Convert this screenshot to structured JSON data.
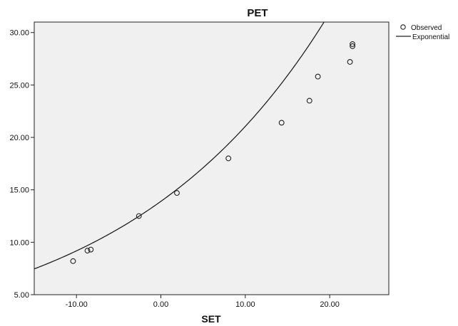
{
  "chart_data": {
    "type": "scatter",
    "title": "PET",
    "xlabel": "SET",
    "ylabel": "",
    "xlim": [
      -15,
      27
    ],
    "ylim": [
      5,
      31
    ],
    "x_ticks": [
      -10,
      0,
      10,
      20
    ],
    "x_tick_labels": [
      "-10.00",
      "0.00",
      "10.00",
      "20.00"
    ],
    "y_ticks": [
      5,
      10,
      15,
      20,
      25,
      30
    ],
    "y_tick_labels": [
      "5.00",
      "10.00",
      "15.00",
      "20.00",
      "25.00",
      "30.00"
    ],
    "grid": false,
    "legend_position": "top-right-outside",
    "series": [
      {
        "name": "Observed",
        "kind": "points",
        "x": [
          -10.4,
          -8.7,
          -8.3,
          -2.6,
          1.9,
          8.0,
          14.3,
          17.6,
          18.6,
          22.4,
          22.7,
          22.7
        ],
        "y": [
          8.2,
          9.2,
          9.3,
          12.5,
          14.7,
          18.0,
          21.4,
          23.5,
          25.8,
          27.2,
          28.7,
          28.9
        ]
      },
      {
        "name": "Exponential",
        "kind": "fit",
        "model": "exponential",
        "a": 13.9,
        "b": 0.0415
      }
    ],
    "colors": {
      "plot_background": "#f0f0f0",
      "points": "#222222",
      "line": "#222222"
    }
  }
}
